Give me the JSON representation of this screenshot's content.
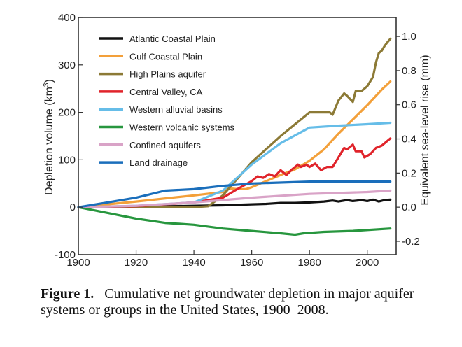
{
  "chart_data": {
    "type": "line",
    "title": "",
    "xlabel": "",
    "ylabel": "Depletion volume (km³)",
    "ylabel_base": "Depletion volume (km",
    "ylabel_sup": "3",
    "ylabel_end": ")",
    "y2label": "Equivalent sea-level rise (mm)",
    "xlim": [
      1900,
      2010
    ],
    "ylim": [
      -100,
      400
    ],
    "y2lim": [
      -0.278,
      1.111
    ],
    "xticks": [
      1900,
      1920,
      1940,
      1960,
      1980,
      2000
    ],
    "yticks": [
      -100,
      0,
      100,
      200,
      300,
      400
    ],
    "y2ticks": [
      "-0.2",
      "0.0",
      "0.2",
      "0.4",
      "0.6",
      "0.8",
      "1.0"
    ],
    "y2tick_values": [
      -0.2,
      0.0,
      0.2,
      0.4,
      0.6,
      0.8,
      1.0
    ],
    "grid": false,
    "legend_position": "top-left",
    "series": [
      {
        "name": "Atlantic Coastal Plain",
        "color": "#111111",
        "x": [
          1900,
          1920,
          1940,
          1950,
          1960,
          1965,
          1970,
          1975,
          1980,
          1985,
          1988,
          1990,
          1993,
          1995,
          1998,
          2000,
          2002,
          2004,
          2006,
          2008
        ],
        "y": [
          0,
          1,
          3,
          4,
          6,
          7,
          9,
          9,
          10,
          12,
          14,
          12,
          15,
          13,
          15,
          13,
          16,
          12,
          15,
          16
        ]
      },
      {
        "name": "Gulf Coastal Plain",
        "color": "#f3a03a",
        "x": [
          1900,
          1920,
          1940,
          1950,
          1952,
          1955,
          1958,
          1960,
          1965,
          1970,
          1975,
          1980,
          1985,
          1990,
          1995,
          2000,
          2005,
          2008
        ],
        "y": [
          0,
          12,
          25,
          32,
          40,
          38,
          38,
          42,
          55,
          68,
          80,
          98,
          122,
          155,
          185,
          215,
          248,
          265
        ]
      },
      {
        "name": "High Plains aquifer",
        "color": "#8c7a36",
        "x": [
          1900,
          1940,
          1945,
          1950,
          1960,
          1970,
          1980,
          1983,
          1986,
          1987,
          1988,
          1990,
          1992,
          1993,
          1995,
          1996,
          1998,
          2000,
          2002,
          2003,
          2004,
          2005,
          2006,
          2007,
          2008
        ],
        "y": [
          0,
          0,
          2,
          25,
          95,
          150,
          200,
          200,
          200,
          200,
          195,
          225,
          240,
          235,
          222,
          245,
          245,
          255,
          275,
          305,
          325,
          330,
          340,
          348,
          355
        ]
      },
      {
        "name": "Central Valley, CA",
        "color": "#e0242b",
        "x": [
          1900,
          1920,
          1940,
          1950,
          1955,
          1960,
          1962,
          1964,
          1966,
          1968,
          1970,
          1972,
          1974,
          1976,
          1977,
          1979,
          1980,
          1982,
          1984,
          1986,
          1988,
          1990,
          1992,
          1993,
          1995,
          1996,
          1998,
          1999,
          2001,
          2003,
          2005,
          2008
        ],
        "y": [
          0,
          2,
          10,
          20,
          38,
          55,
          65,
          62,
          70,
          65,
          78,
          68,
          80,
          90,
          85,
          90,
          85,
          92,
          78,
          85,
          85,
          105,
          125,
          122,
          132,
          118,
          118,
          105,
          112,
          125,
          130,
          145
        ]
      },
      {
        "name": "Western alluvial basins",
        "color": "#66bde8",
        "x": [
          1900,
          1920,
          1940,
          1950,
          1960,
          1970,
          1980,
          1990,
          2000,
          2008
        ],
        "y": [
          0,
          3,
          10,
          35,
          90,
          135,
          168,
          172,
          175,
          178
        ]
      },
      {
        "name": "Western volcanic systems",
        "color": "#27963e",
        "x": [
          1900,
          1910,
          1920,
          1930,
          1940,
          1950,
          1960,
          1970,
          1975,
          1978,
          1985,
          1995,
          2008
        ],
        "y": [
          0,
          -12,
          -24,
          -33,
          -37,
          -45,
          -50,
          -55,
          -58,
          -55,
          -52,
          -50,
          -45
        ]
      },
      {
        "name": "Confined aquifers",
        "color": "#d9a3c7",
        "x": [
          1900,
          1920,
          1940,
          1960,
          1980,
          2000,
          2008
        ],
        "y": [
          0,
          3,
          10,
          20,
          28,
          32,
          35
        ]
      },
      {
        "name": "Land drainage",
        "color": "#1a6ebb",
        "x": [
          1900,
          1910,
          1920,
          1930,
          1940,
          1950,
          1960,
          1980,
          2000,
          2008
        ],
        "y": [
          0,
          10,
          20,
          35,
          38,
          45,
          50,
          54,
          54,
          54
        ]
      }
    ]
  },
  "caption": {
    "label": "Figure 1.",
    "text": "Cumulative net groundwater depletion in major aquifer systems or groups in the United States, 1900–2008."
  }
}
